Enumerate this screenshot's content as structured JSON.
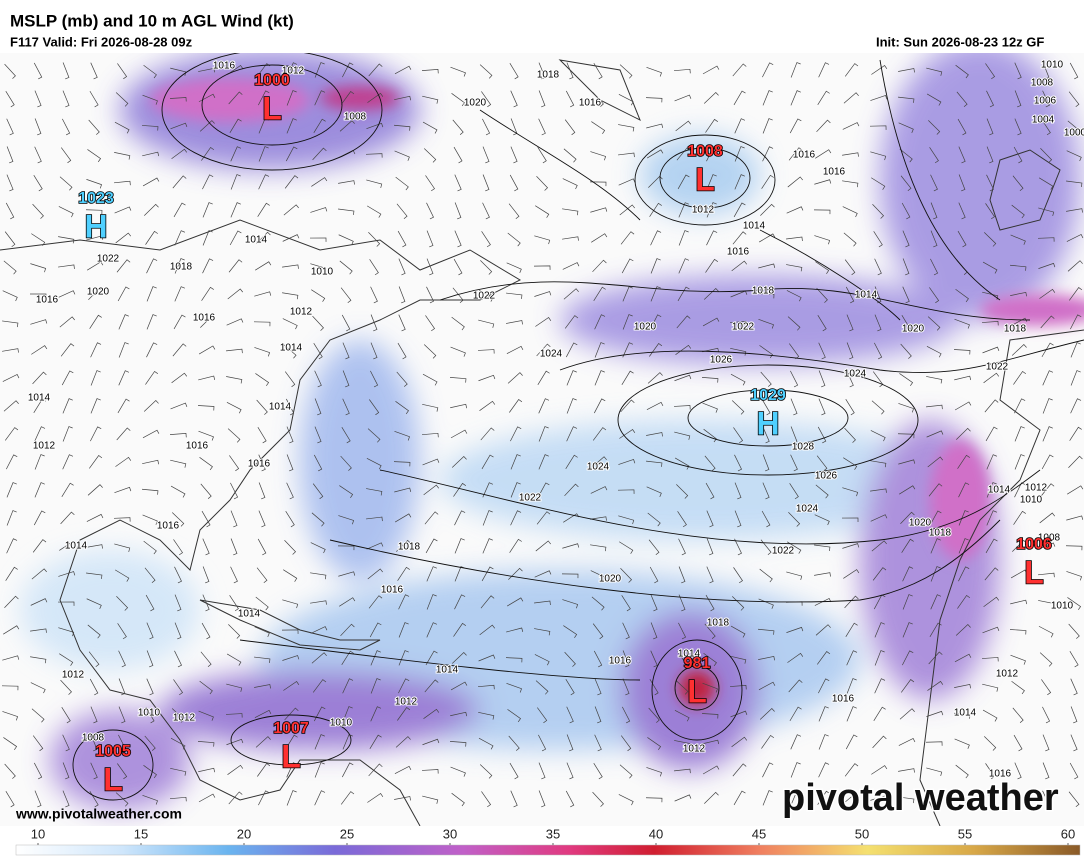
{
  "header": {
    "title": "MSLP (mb) and 10 m AGL Wind (kt)",
    "valid": "F117 Valid: Fri 2026-08-28 09z",
    "init": "Init: Sun 2026-08-23 12z GF"
  },
  "centers": [
    {
      "type": "L",
      "value": 1000
    },
    {
      "type": "H",
      "value": 1023
    },
    {
      "type": "L",
      "value": 1008
    },
    {
      "type": "H",
      "value": 1029
    },
    {
      "type": "L",
      "value": 1006
    },
    {
      "type": "L",
      "value": 981
    },
    {
      "type": "L",
      "value": 1007
    },
    {
      "type": "L",
      "value": 1005
    }
  ],
  "isobar_labels": [
    1016,
    1012,
    1018,
    1020,
    1016,
    1008,
    1016,
    1016,
    1012,
    1014,
    1016,
    1018,
    1014,
    1022,
    1020,
    1022,
    1020,
    1026,
    1024,
    1024,
    1018,
    1022,
    1014,
    1018,
    1022,
    1010,
    1016,
    1020,
    1016,
    1012,
    1014,
    1014,
    1014,
    1016,
    1016,
    1012,
    1024,
    1028,
    1026,
    1024,
    1022,
    1014,
    1012,
    1010,
    1020,
    1018,
    1008,
    1016,
    1014,
    1018,
    1022,
    1020,
    1016,
    1014,
    1018,
    1016,
    1014,
    1012,
    1014,
    1016,
    1012,
    1010,
    1012,
    1010,
    1012,
    1010,
    1012,
    1008,
    1014,
    1016,
    1010,
    1008,
    1006,
    1004,
    1000
  ],
  "colorbar": {
    "ticks": [
      10,
      15,
      20,
      25,
      30,
      35,
      40,
      45,
      50,
      55,
      60
    ]
  },
  "credit": "www.pivotalweather.com",
  "logo": "pivotal weather"
}
